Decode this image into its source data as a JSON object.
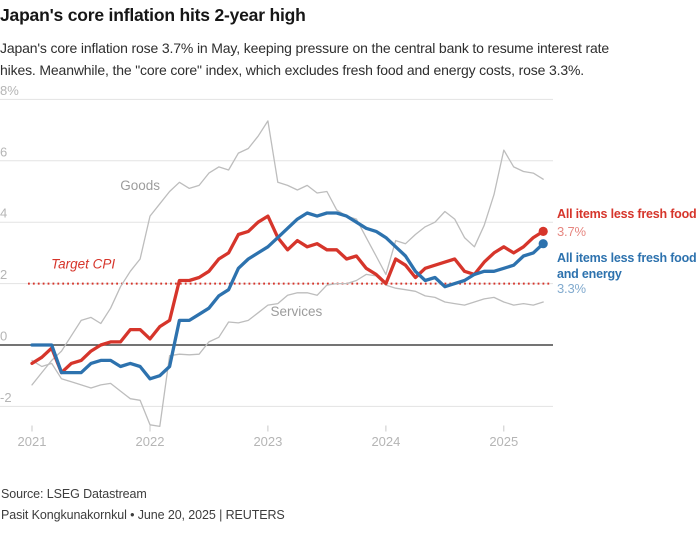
{
  "header": {
    "title": "Japan's core inflation hits 2-year high",
    "subtitle_line1": "Japan's core inflation rose 3.7% in May, keeping pressure on the central bank to resume interest rate",
    "subtitle_line2": "hikes. Meanwhile, the \"core core\" index, which excludes fresh food and energy costs, rose 3.3%."
  },
  "footer": {
    "source": "Source: LSEG Datastream",
    "byline": "Pasit Kongkunakornkul • June 20, 2025 | REUTERS"
  },
  "chart_data": {
    "type": "line",
    "title": "Japan's core inflation hits 2-year high",
    "x_unit": "month",
    "x_start": "2021-01",
    "x_end": "2025-05",
    "grid_on": true,
    "grid_color": "#e3e3e3",
    "zero_line_color": "#474747",
    "tick_color": "#c9c9c9",
    "axis_label_color": "#b5b5b5",
    "x_axis": {
      "ticks": [
        {
          "t": 0,
          "label": "2021"
        },
        {
          "t": 12,
          "label": "2022"
        },
        {
          "t": 24,
          "label": "2023"
        },
        {
          "t": 36,
          "label": "2024"
        },
        {
          "t": 48,
          "label": "2025"
        }
      ]
    },
    "y_axis": {
      "unit": "%",
      "range": [
        -2.9,
        8.2
      ],
      "ticks": [
        {
          "v": 8,
          "label": "8%"
        },
        {
          "v": 6,
          "label": "6"
        },
        {
          "v": 4,
          "label": "4"
        },
        {
          "v": 2,
          "label": "2"
        },
        {
          "v": 0,
          "label": "0"
        },
        {
          "v": -2,
          "label": "-2"
        }
      ]
    },
    "target_line": {
      "value": 2,
      "label": "Target CPI",
      "color": "#d6352b"
    },
    "annotations": [
      {
        "text": "Goods",
        "t": 11,
        "v": 5.05,
        "color": "#9c9c9c",
        "style": "normal"
      },
      {
        "text": "Services",
        "t": 26.9,
        "v": 0.95,
        "color": "#9c9c9c",
        "style": "normal"
      },
      {
        "text": "Target CPI",
        "t": 5.2,
        "v": 2.5,
        "color": "#d6352b",
        "style": "italic"
      }
    ],
    "series": [
      {
        "name": "Goods",
        "color": "#bdbdbd",
        "width": 1.3,
        "end_dot": false,
        "values": [
          -1.3,
          -0.9,
          -0.5,
          -0.2,
          0.3,
          0.8,
          0.9,
          0.7,
          1.2,
          1.9,
          2.4,
          2.8,
          4.2,
          4.6,
          5.0,
          5.3,
          5.1,
          5.2,
          5.6,
          5.8,
          5.7,
          6.25,
          6.4,
          6.8,
          7.3,
          5.3,
          5.2,
          5.05,
          5.2,
          4.95,
          5.0,
          4.4,
          4.2,
          4.1,
          3.5,
          2.9,
          2.3,
          3.4,
          3.3,
          3.6,
          3.85,
          4.0,
          4.35,
          4.1,
          3.5,
          3.2,
          3.9,
          4.9,
          6.35,
          5.8,
          5.65,
          5.6,
          5.4
        ]
      },
      {
        "name": "Services",
        "color": "#bdbdbd",
        "width": 1.3,
        "end_dot": false,
        "values": [
          -0.5,
          -0.7,
          -0.6,
          -1.1,
          -1.2,
          -1.3,
          -1.4,
          -1.3,
          -1.25,
          -1.5,
          -1.75,
          -1.8,
          -2.6,
          -2.65,
          -0.35,
          -0.3,
          -0.32,
          -0.3,
          0.1,
          0.25,
          0.75,
          0.72,
          0.8,
          1.05,
          1.3,
          1.35,
          1.62,
          1.7,
          1.7,
          1.62,
          1.95,
          2.0,
          2.0,
          2.1,
          2.3,
          2.25,
          1.95,
          1.85,
          1.8,
          1.75,
          1.6,
          1.55,
          1.4,
          1.35,
          1.3,
          1.4,
          1.5,
          1.55,
          1.4,
          1.3,
          1.35,
          1.3,
          1.4
        ]
      },
      {
        "name": "All items less fresh food",
        "color": "#d6352b",
        "width": 3.3,
        "end_dot": true,
        "end_label_lines": [
          "All items less fresh food"
        ],
        "end_value": "3.7%",
        "values": [
          -0.6,
          -0.4,
          -0.1,
          -0.9,
          -0.6,
          -0.5,
          -0.2,
          0.0,
          0.1,
          0.1,
          0.5,
          0.5,
          0.2,
          0.6,
          0.8,
          2.1,
          2.1,
          2.2,
          2.4,
          2.8,
          3.0,
          3.6,
          3.7,
          4.0,
          4.2,
          3.5,
          3.1,
          3.4,
          3.2,
          3.3,
          3.1,
          3.1,
          2.8,
          2.9,
          2.5,
          2.3,
          2.0,
          2.8,
          2.6,
          2.2,
          2.5,
          2.6,
          2.7,
          2.8,
          2.4,
          2.3,
          2.7,
          3.0,
          3.2,
          3.0,
          3.2,
          3.5,
          3.7
        ]
      },
      {
        "name": "All items less fresh food and energy",
        "color": "#2d72ae",
        "width": 3.3,
        "end_dot": true,
        "end_label_lines": [
          "All items less fresh food",
          "and energy"
        ],
        "end_value": "3.3%",
        "values": [
          0.0,
          0.0,
          0.0,
          -0.9,
          -0.9,
          -0.9,
          -0.6,
          -0.5,
          -0.5,
          -0.7,
          -0.6,
          -0.7,
          -1.1,
          -1.0,
          -0.7,
          0.8,
          0.8,
          1.0,
          1.2,
          1.6,
          1.8,
          2.5,
          2.8,
          3.0,
          3.2,
          3.5,
          3.8,
          4.1,
          4.3,
          4.2,
          4.3,
          4.3,
          4.2,
          4.0,
          3.8,
          3.7,
          3.5,
          3.2,
          2.9,
          2.4,
          2.1,
          2.2,
          1.9,
          2.0,
          2.1,
          2.3,
          2.4,
          2.4,
          2.5,
          2.6,
          2.9,
          3.0,
          3.3
        ]
      }
    ]
  }
}
